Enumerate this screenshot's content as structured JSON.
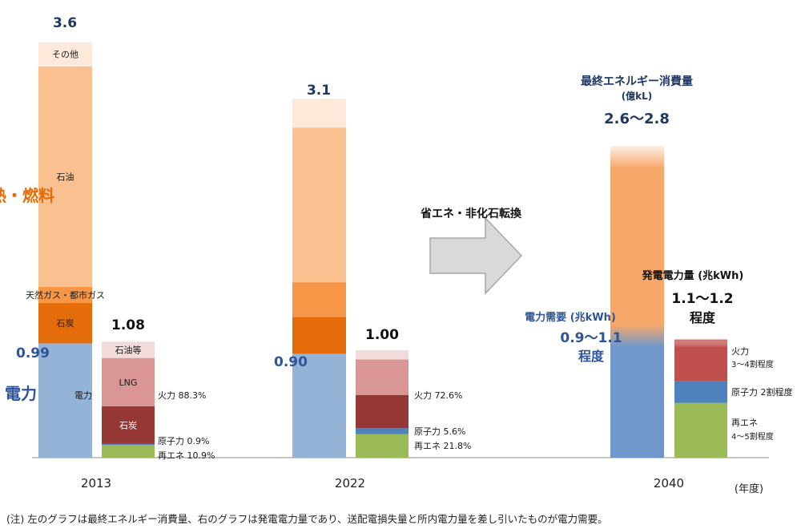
{
  "chart_data": {
    "type": "bar",
    "unit_consumption": "(億kL)",
    "unit_power": "(兆kWh)",
    "year_unit": "(年度)",
    "note": "(注) 左のグラフは最終エネルギー消費量、右のグラフは発電電力量であり、送配電損失量と所内電力量を差し引いたものが電力需要。",
    "colors": {
      "demand": "#95b3d7",
      "coal_c": "#e46c0a",
      "gas": "#f79646",
      "oil": "#fac090",
      "other": "#fde9d9",
      "thermal_lng": "#d99694",
      "thermal_coal": "#953735",
      "thermal_oil": "#f2dcdb",
      "nuclear": "#4f81bd",
      "renewables": "#9bbb59",
      "label_blue": "#2e5597",
      "label_orange": "#e46c0a",
      "label_navy": "#1f3864",
      "arrow_fill": "#d9d9d9",
      "arrow_stroke": "#a6a6a6"
    },
    "group_labels": {
      "heat_fuel": "熱・燃料",
      "electricity": "電力"
    },
    "years": [
      {
        "year": "2013",
        "consumption_total": 3.6,
        "consumption_total_label": "3.6",
        "demand": 0.99,
        "demand_label": "0.99",
        "demand_inner_label": "電力",
        "consumption_segments": [
          {
            "key": "coal_c",
            "name": "石炭",
            "value": 0.35
          },
          {
            "key": "gas",
            "name": "天然ガス・都市ガス",
            "value": 0.14
          },
          {
            "key": "oil",
            "name": "石油",
            "value": 1.91
          },
          {
            "key": "other",
            "name": "その他",
            "value": 0.21
          }
        ],
        "generation_total": 1.08,
        "generation_total_label": "1.08",
        "generation_segments": [
          {
            "key": "renewables",
            "value": 0.118,
            "share_label": "再エネ 10.9%"
          },
          {
            "key": "nuclear",
            "value": 0.01,
            "share_label": "原子力 0.9%"
          },
          {
            "key": "thermal_coal",
            "value": 0.35,
            "name": "石炭"
          },
          {
            "key": "thermal_lng",
            "value": 0.45,
            "name": "LNG"
          },
          {
            "key": "thermal_oil",
            "value": 0.152,
            "name": "石油等"
          }
        ],
        "thermal_label": "火力 88.3%"
      },
      {
        "year": "2022",
        "consumption_total": 3.1,
        "consumption_total_label": "3.1",
        "demand": 0.9,
        "demand_label": "0.90",
        "consumption_segments": [
          {
            "key": "coal_c",
            "value": 0.32
          },
          {
            "key": "gas",
            "value": 0.3
          },
          {
            "key": "oil",
            "value": 1.34
          },
          {
            "key": "other",
            "value": 0.25
          }
        ],
        "generation_total": 1.0,
        "generation_total_label": "1.00",
        "generation_segments": [
          {
            "key": "renewables",
            "value": 0.218,
            "share_label": "再エネ 21.8%"
          },
          {
            "key": "nuclear",
            "value": 0.056,
            "share_label": "原子力 5.6%"
          },
          {
            "key": "thermal_coal",
            "value": 0.31
          },
          {
            "key": "thermal_lng",
            "value": 0.33
          },
          {
            "key": "thermal_oil",
            "value": 0.086
          }
        ],
        "thermal_label": "火力 72.6%"
      },
      {
        "year": "2040",
        "consumption_range": [
          2.6,
          2.8
        ],
        "consumption_total_label": "2.6～2.8",
        "consumption_title": "最終エネルギー消費量",
        "demand_range": [
          0.9,
          1.1
        ],
        "demand_title": "電力需要",
        "demand_label": "0.9～1.1",
        "demand_suffix": "程度",
        "generation_range": [
          1.1,
          1.2
        ],
        "generation_title": "発電電力量",
        "generation_total_label": "1.1～1.2",
        "generation_suffix": "程度",
        "generation_segments": [
          {
            "key": "renewables",
            "share_label_1": "再エネ",
            "share_label_2": "4～5割程度",
            "value": 0.51
          },
          {
            "key": "nuclear",
            "share_label": "原子力 2割程度",
            "value": 0.2
          },
          {
            "key": "thermal",
            "share_label_1": "火力",
            "share_label_2": "3～4割程度",
            "value": 0.39
          }
        ]
      }
    ],
    "transition_label": "省エネ・非化石転換"
  }
}
